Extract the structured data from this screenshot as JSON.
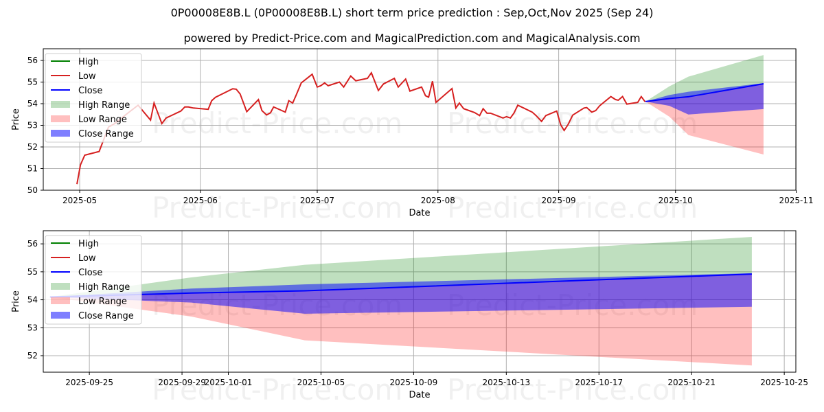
{
  "title": "0P00008E8B.L (0P00008E8B.L) short term price prediction : Sep,Oct,Nov 2025 (Sep 24)",
  "subtitle": "powered by Predict-Price.com and MagicalPrediction.com and MagicalAnalysis.com",
  "watermark": "Predict-Price.com",
  "colors": {
    "high": "#008000",
    "low": "#d62020",
    "close": "#0000ff",
    "high_range": "rgba(0,128,0,0.25)",
    "low_range": "rgba(255,0,0,0.25)",
    "close_range": "rgba(0,0,255,0.5)"
  },
  "legend": [
    "High",
    "Low",
    "Close",
    "High Range",
    "Low Range",
    "Close Range"
  ],
  "chart_data": [
    {
      "type": "line",
      "xlabel": "Date",
      "ylabel": "Price",
      "x_unit": "days since 2025-05-01",
      "ylim": [
        50,
        56.54
      ],
      "xlim": [
        -9.35,
        183.9
      ],
      "yticks": [
        50,
        51,
        52,
        53,
        54,
        55,
        56
      ],
      "xticks": [
        {
          "v": 0,
          "l": "2025-05"
        },
        {
          "v": 31,
          "l": "2025-06"
        },
        {
          "v": 61,
          "l": "2025-07"
        },
        {
          "v": 92,
          "l": "2025-08"
        },
        {
          "v": 123,
          "l": "2025-09"
        },
        {
          "v": 153,
          "l": "2025-10"
        },
        {
          "v": 184,
          "l": "2025-11"
        }
      ],
      "history": [
        [
          -0.7,
          50.28
        ],
        [
          0.2,
          51.17
        ],
        [
          1.3,
          51.62
        ],
        [
          5.0,
          51.79
        ],
        [
          7.4,
          52.92
        ],
        [
          9.0,
          53.08
        ],
        [
          11.9,
          53.5
        ],
        [
          15.0,
          53.93
        ],
        [
          18.2,
          53.24
        ],
        [
          19.1,
          54.03
        ],
        [
          21.1,
          53.08
        ],
        [
          22.2,
          53.34
        ],
        [
          26.0,
          53.66
        ],
        [
          27.0,
          53.85
        ],
        [
          27.9,
          53.85
        ],
        [
          29.2,
          53.8
        ],
        [
          33.0,
          53.74
        ],
        [
          33.9,
          54.14
        ],
        [
          34.9,
          54.3
        ],
        [
          39.3,
          54.69
        ],
        [
          40.2,
          54.67
        ],
        [
          41.2,
          54.45
        ],
        [
          42.9,
          53.63
        ],
        [
          45.9,
          54.19
        ],
        [
          46.8,
          53.68
        ],
        [
          48.0,
          53.48
        ],
        [
          49.0,
          53.58
        ],
        [
          49.8,
          53.85
        ],
        [
          52.8,
          53.61
        ],
        [
          53.7,
          54.14
        ],
        [
          54.7,
          54.03
        ],
        [
          55.6,
          54.4
        ],
        [
          56.9,
          54.96
        ],
        [
          59.7,
          55.36
        ],
        [
          61.0,
          54.77
        ],
        [
          61.9,
          54.83
        ],
        [
          62.9,
          54.96
        ],
        [
          63.8,
          54.83
        ],
        [
          66.7,
          55.0
        ],
        [
          67.8,
          54.77
        ],
        [
          69.6,
          55.28
        ],
        [
          70.9,
          55.06
        ],
        [
          73.9,
          55.17
        ],
        [
          74.9,
          55.43
        ],
        [
          76.7,
          54.61
        ],
        [
          78.0,
          54.91
        ],
        [
          80.8,
          55.17
        ],
        [
          81.8,
          54.77
        ],
        [
          83.7,
          55.14
        ],
        [
          84.8,
          54.58
        ],
        [
          87.8,
          54.77
        ],
        [
          88.8,
          54.37
        ],
        [
          89.6,
          54.3
        ],
        [
          90.6,
          55.04
        ],
        [
          91.5,
          54.06
        ],
        [
          95.6,
          54.7
        ],
        [
          96.6,
          53.8
        ],
        [
          97.5,
          54.03
        ],
        [
          98.6,
          53.77
        ],
        [
          101.4,
          53.59
        ],
        [
          102.7,
          53.45
        ],
        [
          103.6,
          53.77
        ],
        [
          104.6,
          53.56
        ],
        [
          105.5,
          53.56
        ],
        [
          108.7,
          53.34
        ],
        [
          109.6,
          53.4
        ],
        [
          110.6,
          53.34
        ],
        [
          111.5,
          53.56
        ],
        [
          112.5,
          53.93
        ],
        [
          116.2,
          53.61
        ],
        [
          117.2,
          53.45
        ],
        [
          118.6,
          53.18
        ],
        [
          119.7,
          53.45
        ],
        [
          122.5,
          53.66
        ],
        [
          123.5,
          53.03
        ],
        [
          124.4,
          52.76
        ],
        [
          125.4,
          53.03
        ],
        [
          126.6,
          53.47
        ],
        [
          129.5,
          53.8
        ],
        [
          130.2,
          53.82
        ],
        [
          131.5,
          53.61
        ],
        [
          132.5,
          53.68
        ],
        [
          133.5,
          53.9
        ],
        [
          136.4,
          54.33
        ],
        [
          137.6,
          54.19
        ],
        [
          138.3,
          54.16
        ],
        [
          139.4,
          54.33
        ],
        [
          140.5,
          53.98
        ],
        [
          143.3,
          54.06
        ],
        [
          144.2,
          54.33
        ],
        [
          145.2,
          54.09
        ]
      ]
    },
    {
      "type": "area",
      "xlabel": "Date",
      "ylabel": "Price",
      "x_unit": "days since 2025-05-01",
      "ylim": [
        51.41,
        56.47
      ],
      "xlim": [
        145.01,
        177.5
      ],
      "yticks": [
        52,
        53,
        54,
        55,
        56
      ],
      "xticks": [
        {
          "v": 147,
          "l": "2025-09-25"
        },
        {
          "v": 151,
          "l": "2025-09-29"
        },
        {
          "v": 153,
          "l": "2025-10-01"
        },
        {
          "v": 157,
          "l": "2025-10-05"
        },
        {
          "v": 161,
          "l": "2025-10-09"
        },
        {
          "v": 165,
          "l": "2025-10-13"
        },
        {
          "v": 169,
          "l": "2025-10-17"
        },
        {
          "v": 173,
          "l": "2025-10-21"
        },
        {
          "v": 177,
          "l": "2025-10-25"
        }
      ]
    }
  ],
  "forecast": {
    "x": [
      145.3,
      151.4,
      156.3,
      175.6
    ],
    "close": [
      54.1,
      54.24,
      54.32,
      54.92
    ],
    "high_upper": [
      54.1,
      54.8,
      55.25,
      56.25
    ],
    "close_upper": [
      54.1,
      54.4,
      54.55,
      54.95
    ],
    "close_lower": [
      54.1,
      53.9,
      53.5,
      53.75
    ],
    "low_lower": [
      54.1,
      53.4,
      52.55,
      51.65
    ]
  }
}
